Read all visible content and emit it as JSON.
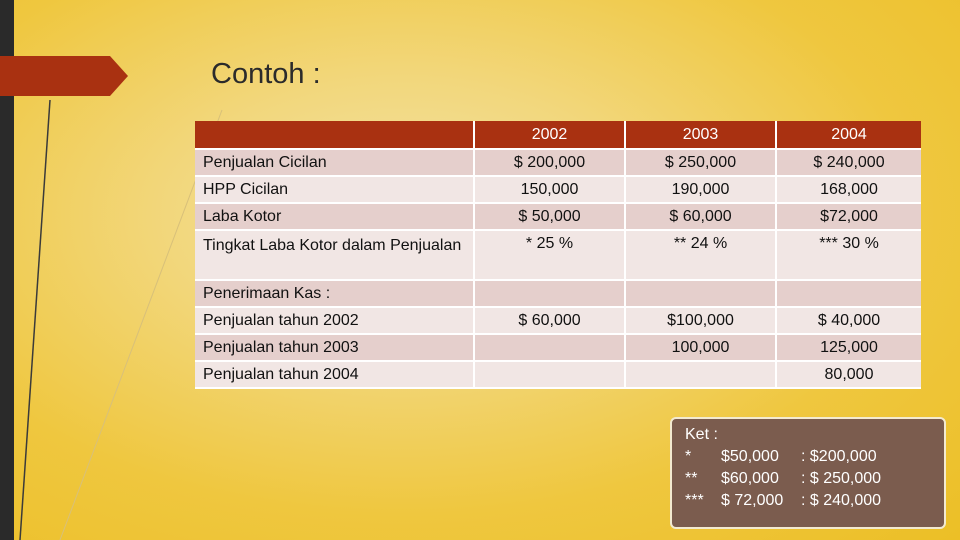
{
  "title": "Contoh :",
  "colors": {
    "header_bg": "#a93111",
    "accent_arrow": "#a93111",
    "note_bg": "#7b5c4e"
  },
  "table": {
    "headers": [
      "",
      "2002",
      "2003",
      "2004"
    ],
    "rows": [
      [
        "Penjualan Cicilan",
        "$ 200,000",
        "$ 250,000",
        "$ 240,000"
      ],
      [
        "HPP Cicilan",
        "150,000",
        "190,000",
        "168,000"
      ],
      [
        "Laba Kotor",
        "$ 50,000",
        "$ 60,000",
        "$72,000"
      ],
      [
        "Tingkat Laba Kotor dalam Penjualan",
        "* 25 %",
        "** 24 %",
        "*** 30 %"
      ],
      [
        "Penerimaan Kas :",
        "",
        "",
        ""
      ],
      [
        "Penjualan tahun 2002",
        "$ 60,000",
        "$100,000",
        "$ 40,000"
      ],
      [
        "Penjualan tahun 2003",
        "",
        "100,000",
        "125,000"
      ],
      [
        "Penjualan tahun 2004",
        "",
        "",
        "80,000"
      ]
    ]
  },
  "note": {
    "heading": "Ket :",
    "lines": [
      [
        "*",
        "$50,000",
        ": $200,000"
      ],
      [
        "**",
        "$60,000",
        ": $ 250,000"
      ],
      [
        "***",
        "$ 72,000",
        ": $ 240,000"
      ]
    ]
  }
}
